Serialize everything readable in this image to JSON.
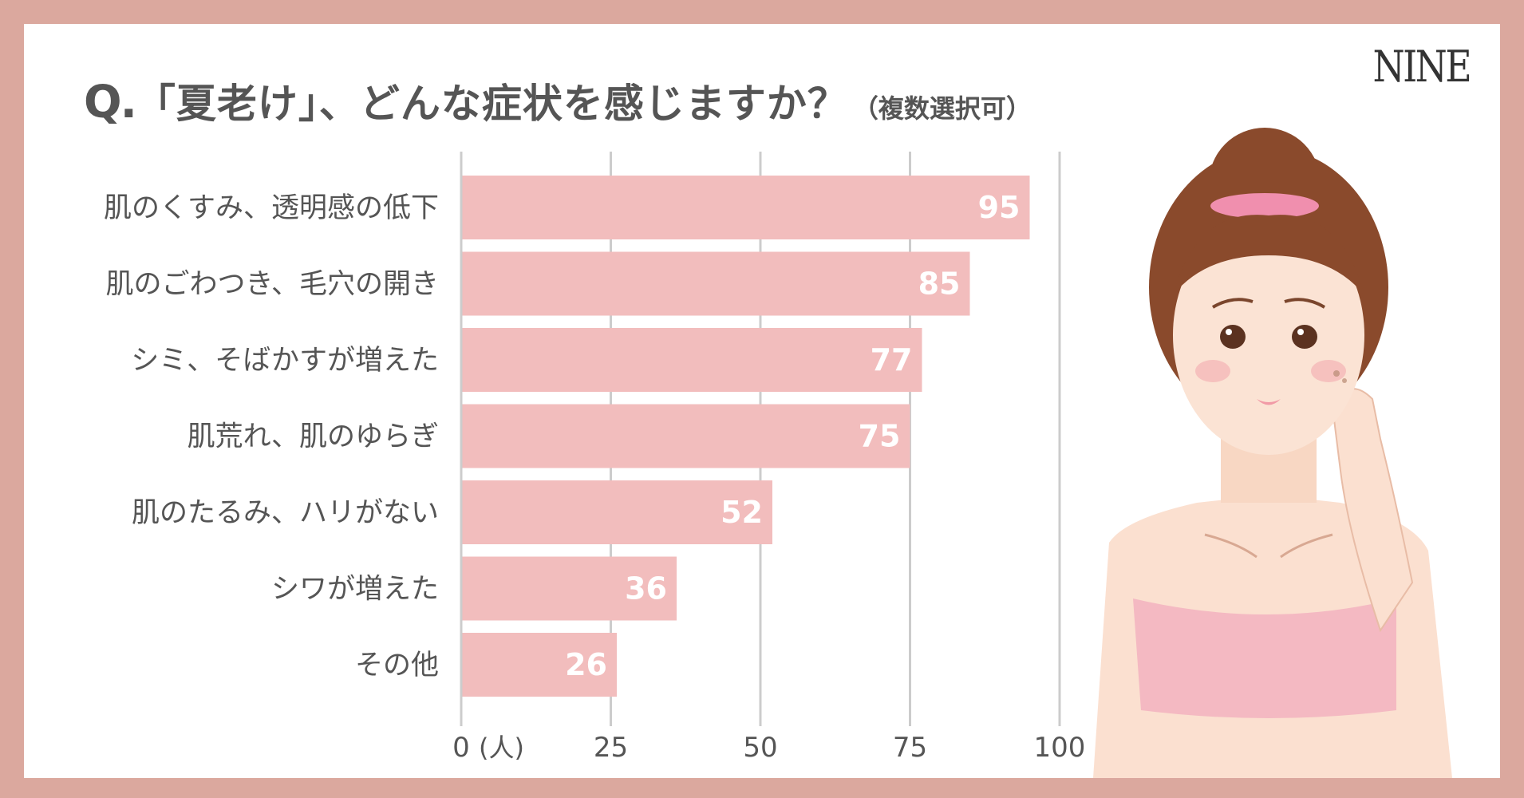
{
  "title": {
    "prefix": "Q.",
    "main": "「夏老け」、どんな症状を感じますか？",
    "sub": "（複数選択可）"
  },
  "logo": "NINE",
  "colors": {
    "background": "#dba89e",
    "card": "#ffffff",
    "bar": "#f2bdbd",
    "grid": "#cccccc",
    "text": "#555555",
    "value_label": "#ffffff"
  },
  "chart_data": {
    "type": "bar",
    "orientation": "horizontal",
    "title": "「夏老け」、どんな症状を感じますか？",
    "subtitle": "（複数選択可）",
    "categories": [
      "肌のくすみ、透明感の低下",
      "肌のごわつき、毛穴の開き",
      "シミ、そばかすが増えた",
      "肌荒れ、肌のゆらぎ",
      "肌のたるみ、ハリがない",
      "シワが増えた",
      "その他"
    ],
    "values": [
      95,
      85,
      77,
      75,
      52,
      36,
      26
    ],
    "xlim": [
      0,
      100
    ],
    "xticks": [
      "0",
      "25",
      "50",
      "75",
      "100"
    ],
    "unit": "(人)",
    "grid": true,
    "legend": false
  }
}
